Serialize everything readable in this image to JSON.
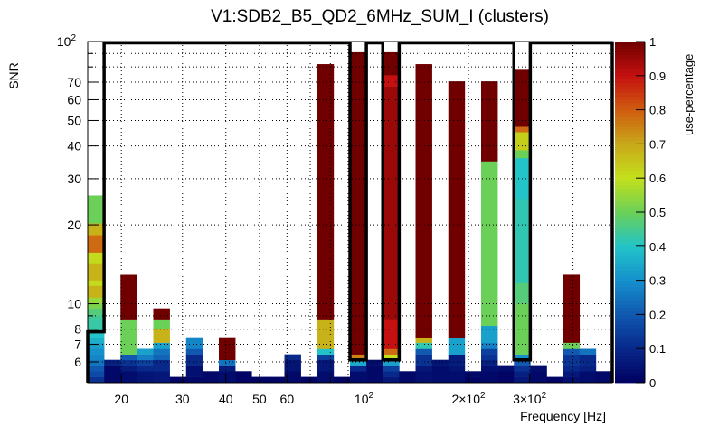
{
  "chart_data": {
    "type": "heatmap",
    "title": "V1:SDB2_B5_QD2_6MHz_SUM_I (clusters)",
    "xlabel": "Frequency [Hz]",
    "ylabel": "SNR",
    "zlabel": "use-percentage",
    "xscale": "log",
    "yscale": "log",
    "xlim": [
      16,
      519
    ],
    "ylim": [
      5,
      100
    ],
    "zlim": [
      0,
      1
    ],
    "nbins_x": 32,
    "grid": true,
    "x_ticks": [
      {
        "value": 20,
        "label": "20"
      },
      {
        "value": 30,
        "label": "30"
      },
      {
        "value": 40,
        "label": "40"
      },
      {
        "value": 50,
        "label": "50"
      },
      {
        "value": 60,
        "label": "60"
      },
      {
        "value": 100,
        "label": "10",
        "sup": "2"
      },
      {
        "value": 200,
        "label": "2×10",
        "sup": "2"
      },
      {
        "value": 300,
        "label": "3×10",
        "sup": "2"
      }
    ],
    "x_minor_grid": [
      70,
      80,
      90,
      400
    ],
    "y_ticks": [
      {
        "value": 6,
        "label": "6"
      },
      {
        "value": 7,
        "label": "7"
      },
      {
        "value": 8,
        "label": "8"
      },
      {
        "value": 10,
        "label": "10"
      },
      {
        "value": 20,
        "label": "20"
      },
      {
        "value": 30,
        "label": "30"
      },
      {
        "value": 40,
        "label": "40"
      },
      {
        "value": 50,
        "label": "50"
      },
      {
        "value": 60,
        "label": "60"
      },
      {
        "value": 70,
        "label": "70"
      },
      {
        "value": 100,
        "label": "10",
        "sup": "2"
      }
    ],
    "y_minor_grid": [
      9,
      80,
      90
    ],
    "z_ticks": [
      "0",
      "0.1",
      "0.2",
      "0.3",
      "0.4",
      "0.5",
      "0.6",
      "0.7",
      "0.8",
      "0.9",
      "1"
    ],
    "palette": [
      "#000060",
      "#08288a",
      "#1058b0",
      "#1590cc",
      "#22c4c8",
      "#6ad058",
      "#c4e01c",
      "#c8a818",
      "#d05c10",
      "#c41010",
      "#700000"
    ],
    "columns": [
      {
        "bin": 0,
        "segments": [
          [
            5,
            5.26,
            0.12
          ],
          [
            5.26,
            5.53,
            0.17
          ],
          [
            5.53,
            5.83,
            0.2
          ],
          [
            5.83,
            6.11,
            0.25
          ],
          [
            6.11,
            6.41,
            0.28
          ],
          [
            6.41,
            6.73,
            0.3
          ],
          [
            6.73,
            7.11,
            0.33
          ],
          [
            7.11,
            7.45,
            0.36
          ],
          [
            7.45,
            7.82,
            0.4
          ],
          [
            7.82,
            8.67,
            0.43
          ],
          [
            8.67,
            9.02,
            0.44
          ],
          [
            9.02,
            9.61,
            0.47
          ],
          [
            9.61,
            10,
            0.52
          ],
          [
            10,
            10.57,
            0.55
          ],
          [
            10.57,
            11.72,
            0.68
          ],
          [
            11.72,
            12.29,
            0.61
          ],
          [
            12.29,
            14.3,
            0.68
          ],
          [
            14.3,
            15.7,
            0.61
          ],
          [
            15.7,
            18.3,
            0.78
          ],
          [
            18.3,
            20.3,
            0.68
          ],
          [
            20.3,
            25.9,
            0.5
          ]
        ]
      },
      {
        "bin": 1,
        "segments": [
          [
            5,
            5.83,
            0.02
          ],
          [
            5.83,
            6.11,
            0.08
          ]
        ]
      },
      {
        "bin": 2,
        "segments": [
          [
            5,
            5.53,
            0.03
          ],
          [
            5.53,
            5.83,
            0.07
          ],
          [
            5.83,
            6.11,
            0.12
          ],
          [
            6.11,
            6.41,
            0.2
          ],
          [
            6.41,
            8.67,
            0.5
          ],
          [
            8.67,
            12.89,
            1.0
          ]
        ]
      },
      {
        "bin": 3,
        "segments": [
          [
            5,
            5.53,
            0.05
          ],
          [
            5.53,
            5.83,
            0.1
          ],
          [
            5.83,
            6.11,
            0.15
          ],
          [
            6.11,
            6.41,
            0.27
          ],
          [
            6.41,
            6.73,
            0.33
          ]
        ]
      },
      {
        "bin": 4,
        "segments": [
          [
            5,
            5.53,
            0.06
          ],
          [
            5.53,
            6.11,
            0.1
          ],
          [
            6.11,
            6.41,
            0.22
          ],
          [
            6.41,
            6.73,
            0.25
          ],
          [
            6.73,
            7.11,
            0.33
          ],
          [
            7.11,
            8.0,
            0.68
          ],
          [
            8.0,
            8.67,
            0.5
          ],
          [
            8.67,
            9.6,
            1.0
          ]
        ]
      },
      {
        "bin": 5,
        "segments": [
          [
            5,
            5.26,
            0.01
          ]
        ]
      },
      {
        "bin": 6,
        "segments": [
          [
            5,
            5.26,
            0.02
          ],
          [
            5.26,
            5.83,
            0.04
          ],
          [
            5.83,
            6.41,
            0.1
          ],
          [
            6.41,
            6.73,
            0.2
          ],
          [
            6.73,
            7.45,
            0.28
          ]
        ]
      },
      {
        "bin": 7,
        "segments": [
          [
            5,
            5.53,
            0.02
          ]
        ]
      },
      {
        "bin": 8,
        "segments": [
          [
            5,
            5.53,
            0.03
          ],
          [
            5.53,
            5.83,
            0.07
          ],
          [
            5.83,
            6.11,
            0.25
          ],
          [
            6.11,
            7.45,
            1.0
          ]
        ]
      },
      {
        "bin": 9,
        "segments": [
          [
            5,
            5.53,
            0.01
          ]
        ]
      },
      {
        "bin": 10,
        "segments": [
          [
            5,
            5.26,
            0.01
          ]
        ]
      },
      {
        "bin": 11,
        "segments": [
          [
            5,
            5.26,
            0.01
          ]
        ]
      },
      {
        "bin": 12,
        "segments": [
          [
            5,
            5.53,
            0.02
          ],
          [
            5.53,
            6.11,
            0.05
          ],
          [
            6.11,
            6.41,
            0.1
          ]
        ]
      },
      {
        "bin": 13,
        "segments": [
          [
            5,
            5.26,
            0.01
          ]
        ]
      },
      {
        "bin": 14,
        "segments": [
          [
            5,
            5.53,
            0.03
          ],
          [
            5.53,
            6.11,
            0.06
          ],
          [
            6.11,
            6.41,
            0.15
          ],
          [
            6.41,
            6.73,
            0.4
          ],
          [
            6.73,
            8.67,
            0.68
          ],
          [
            8.67,
            82,
            1.0
          ]
        ]
      },
      {
        "bin": 15,
        "segments": [
          [
            5,
            5.26,
            0.01
          ]
        ]
      },
      {
        "bin": 16,
        "segments": [
          [
            5,
            5.53,
            0.03
          ],
          [
            5.53,
            5.83,
            0.1
          ],
          [
            5.83,
            6.11,
            0.35
          ],
          [
            6.11,
            6.41,
            0.75
          ],
          [
            6.41,
            91,
            1.0
          ]
        ]
      },
      {
        "bin": 17,
        "segments": [
          [
            5,
            5.83,
            0.02
          ],
          [
            5.83,
            6.11,
            0.03
          ]
        ]
      },
      {
        "bin": 18,
        "segments": [
          [
            5,
            5.26,
            0.06
          ],
          [
            5.26,
            5.53,
            0.1
          ],
          [
            5.53,
            5.83,
            0.15
          ],
          [
            5.83,
            6.11,
            0.33
          ],
          [
            6.11,
            6.41,
            0.6
          ],
          [
            6.41,
            6.73,
            0.78
          ],
          [
            6.73,
            8.67,
            0.9
          ],
          [
            8.67,
            67.5,
            0.95
          ],
          [
            67.5,
            74.5,
            0.9
          ],
          [
            74.5,
            91,
            1.0
          ]
        ]
      },
      {
        "bin": 19,
        "segments": [
          [
            5,
            5.53,
            0.02
          ]
        ]
      },
      {
        "bin": 20,
        "segments": [
          [
            5,
            5.53,
            0.04
          ],
          [
            5.53,
            5.83,
            0.06
          ],
          [
            5.83,
            6.41,
            0.12
          ],
          [
            6.41,
            6.73,
            0.2
          ],
          [
            6.73,
            7.11,
            0.42
          ],
          [
            7.11,
            7.45,
            0.68
          ],
          [
            7.45,
            82,
            1.0
          ]
        ]
      },
      {
        "bin": 21,
        "segments": [
          [
            5,
            5.83,
            0.03
          ],
          [
            5.83,
            6.11,
            0.05
          ]
        ]
      },
      {
        "bin": 22,
        "segments": [
          [
            5,
            5.53,
            0.03
          ],
          [
            5.53,
            5.83,
            0.05
          ],
          [
            5.83,
            6.41,
            0.07
          ],
          [
            6.41,
            7.45,
            0.33
          ],
          [
            7.45,
            70.5,
            1.0
          ]
        ]
      },
      {
        "bin": 23,
        "segments": [
          [
            5,
            5.26,
            0.01
          ],
          [
            5.26,
            5.53,
            0.02
          ]
        ]
      },
      {
        "bin": 24,
        "segments": [
          [
            5,
            5.53,
            0.02
          ],
          [
            5.53,
            5.83,
            0.04
          ],
          [
            5.83,
            6.11,
            0.08
          ],
          [
            6.11,
            6.41,
            0.12
          ],
          [
            6.41,
            6.73,
            0.15
          ],
          [
            6.73,
            7.11,
            0.27
          ],
          [
            7.11,
            8.26,
            0.33
          ],
          [
            8.26,
            35,
            0.5
          ],
          [
            35,
            70.5,
            1.0
          ]
        ]
      },
      {
        "bin": 25,
        "segments": [
          [
            5,
            5.53,
            0.01
          ],
          [
            5.53,
            5.83,
            0.03
          ]
        ]
      },
      {
        "bin": 26,
        "segments": [
          [
            5,
            5.26,
            0.06
          ],
          [
            5.26,
            5.53,
            0.08
          ],
          [
            5.53,
            5.83,
            0.12
          ],
          [
            5.83,
            6.11,
            0.2
          ],
          [
            6.11,
            6.41,
            0.3
          ],
          [
            6.41,
            10,
            0.5
          ],
          [
            10,
            12,
            0.47
          ],
          [
            12,
            25,
            0.42
          ],
          [
            25,
            36,
            0.4
          ],
          [
            36,
            38.6,
            0.5
          ],
          [
            38.6,
            45.2,
            0.63
          ],
          [
            45.2,
            47.4,
            0.78
          ],
          [
            47.4,
            78,
            1.0
          ]
        ]
      },
      {
        "bin": 27,
        "segments": [
          [
            5,
            5.53,
            0.02
          ],
          [
            5.53,
            5.83,
            0.03
          ]
        ]
      },
      {
        "bin": 28,
        "segments": [
          [
            5,
            5.26,
            0.01
          ]
        ]
      },
      {
        "bin": 29,
        "segments": [
          [
            5,
            5.26,
            0.04
          ],
          [
            5.26,
            5.53,
            0.06
          ],
          [
            5.53,
            5.83,
            0.1
          ],
          [
            5.83,
            6.41,
            0.13
          ],
          [
            6.41,
            6.73,
            0.2
          ],
          [
            6.73,
            7.11,
            0.5
          ],
          [
            7.11,
            12.9,
            1.0
          ]
        ]
      },
      {
        "bin": 30,
        "segments": [
          [
            5,
            5.53,
            0.03
          ],
          [
            5.53,
            5.83,
            0.08
          ],
          [
            5.83,
            6.41,
            0.1
          ],
          [
            6.41,
            6.73,
            0.25
          ]
        ]
      },
      {
        "bin": 31,
        "segments": [
          [
            5,
            5.53,
            0.02
          ]
        ]
      }
    ],
    "threshold_contour": [
      7.82,
      100,
      100,
      100,
      100,
      100,
      100,
      100,
      100,
      100,
      100,
      100,
      100,
      100,
      100,
      100,
      6.11,
      100,
      6.11,
      100,
      100,
      100,
      100,
      100,
      100,
      100,
      6.11,
      100,
      100,
      100,
      100,
      100
    ]
  }
}
